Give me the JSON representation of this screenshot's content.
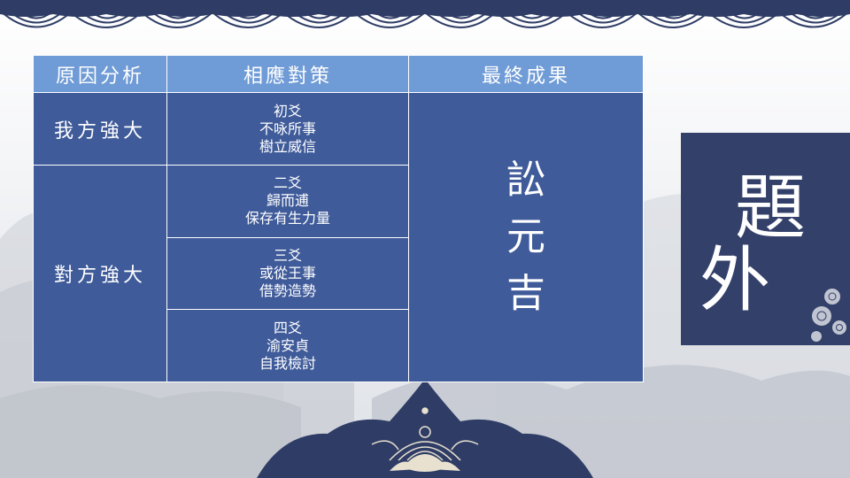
{
  "table": {
    "headers": [
      "原因分析",
      "相應對策",
      "最終成果"
    ],
    "reasons": [
      "我方強大",
      "對方強大"
    ],
    "responses": [
      [
        "初爻",
        "不咏所事",
        "樹立威信"
      ],
      [
        "二爻",
        "歸而逋",
        "保存有生力量"
      ],
      [
        "三爻",
        "或從王事",
        "借勢造勢"
      ],
      [
        "四爻",
        "渝安貞",
        "自我檢討"
      ]
    ],
    "result": [
      "訟",
      "元",
      "吉"
    ]
  },
  "title": [
    "題",
    "外"
  ],
  "colors": {
    "header": "#6f9bd6",
    "cell": "#3f5b9a",
    "title_box": "#33406a",
    "text": "#ffffff"
  }
}
